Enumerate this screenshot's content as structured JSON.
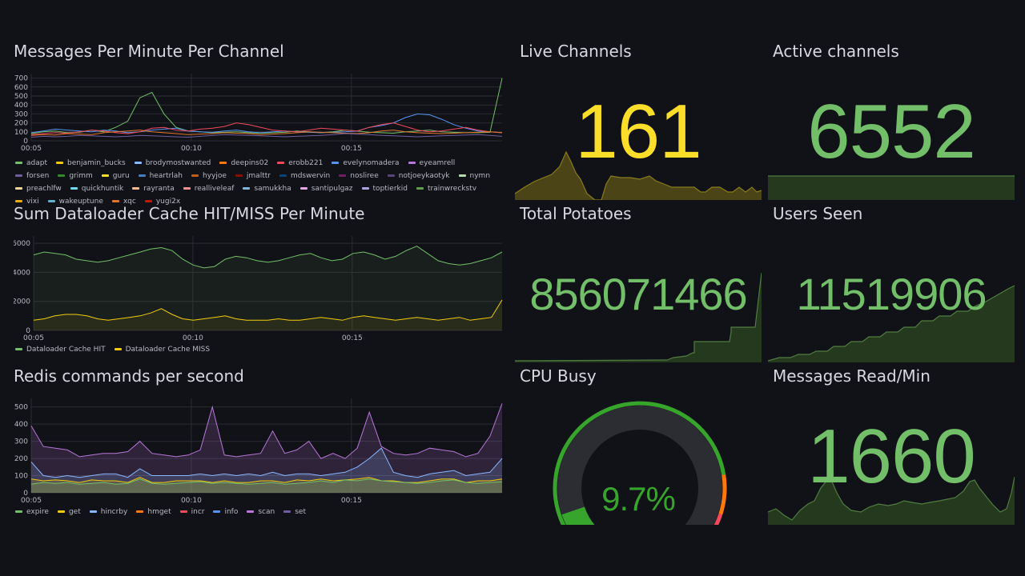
{
  "panels": {
    "messages_per_channel": {
      "title": "Messages Per Minute Per Channel",
      "legend": [
        {
          "name": "adapt",
          "color": "#73bf69"
        },
        {
          "name": "benjamin_bucks",
          "color": "#f2cc0c"
        },
        {
          "name": "brodymostwanted",
          "color": "#8ab8ff"
        },
        {
          "name": "deepins02",
          "color": "#ff780a"
        },
        {
          "name": "erobb221",
          "color": "#f2495c"
        },
        {
          "name": "evelynomadera",
          "color": "#5794f2"
        },
        {
          "name": "eyeamrell",
          "color": "#b877d9"
        },
        {
          "name": "forsen",
          "color": "#705da0"
        },
        {
          "name": "grimm",
          "color": "#37872d"
        },
        {
          "name": "guru",
          "color": "#fade2a"
        },
        {
          "name": "heartrlah",
          "color": "#447ebc"
        },
        {
          "name": "hyyjoe",
          "color": "#c15c17"
        },
        {
          "name": "jmalttr",
          "color": "#890f02"
        },
        {
          "name": "mdswervin",
          "color": "#0a437c"
        },
        {
          "name": "nosliree",
          "color": "#6d1f62"
        },
        {
          "name": "notjoeykaotyk",
          "color": "#584477"
        },
        {
          "name": "nymn",
          "color": "#b7dbab"
        },
        {
          "name": "preachlfw",
          "color": "#f4d598"
        },
        {
          "name": "quickhuntik",
          "color": "#70dbed"
        },
        {
          "name": "rayranta",
          "color": "#f9ba8f"
        },
        {
          "name": "realliveleaf",
          "color": "#f29191"
        },
        {
          "name": "samukkha",
          "color": "#82b5d8"
        },
        {
          "name": "santipulgaz",
          "color": "#e5a8e2"
        },
        {
          "name": "toptierkid",
          "color": "#aea2e0"
        },
        {
          "name": "trainwreckstv",
          "color": "#629e51"
        },
        {
          "name": "vixi",
          "color": "#e5ac0e"
        },
        {
          "name": "wakeuptune",
          "color": "#64b0c8"
        },
        {
          "name": "xqc",
          "color": "#e0752d"
        },
        {
          "name": "yugi2x",
          "color": "#bf1b00"
        }
      ]
    },
    "dataloader_cache": {
      "title": "Sum Dataloader Cache HIT/MISS Per Minute",
      "legend": [
        {
          "name": "Dataloader Cache HIT",
          "color": "#73bf69"
        },
        {
          "name": "Dataloader Cache MISS",
          "color": "#f2cc0c"
        }
      ]
    },
    "redis_commands": {
      "title": "Redis commands per second",
      "legend": [
        {
          "name": "expire",
          "color": "#73bf69"
        },
        {
          "name": "get",
          "color": "#f2cc0c"
        },
        {
          "name": "hincrby",
          "color": "#8ab8ff"
        },
        {
          "name": "hmget",
          "color": "#ff780a"
        },
        {
          "name": "incr",
          "color": "#f2495c"
        },
        {
          "name": "info",
          "color": "#5794f2"
        },
        {
          "name": "scan",
          "color": "#b877d9"
        },
        {
          "name": "set",
          "color": "#705da0"
        }
      ]
    },
    "live_channels": {
      "title": "Live Channels",
      "value": "161",
      "color": "#fade2a"
    },
    "active_channels": {
      "title": "Active channels",
      "value": "6552",
      "color": "#73bf69"
    },
    "total_potatoes": {
      "title": "Total Potatoes",
      "value": "856071466",
      "color": "#73bf69"
    },
    "users_seen": {
      "title": "Users Seen",
      "value": "11519906",
      "color": "#73bf69"
    },
    "cpu_busy": {
      "title": "CPU Busy",
      "value": "9.7%",
      "percent": 9.7,
      "color": "#37a42c"
    },
    "messages_read": {
      "title": "Messages Read/Min",
      "value": "1660",
      "color": "#73bf69"
    }
  },
  "chart_data": [
    {
      "type": "line",
      "title": "Messages Per Minute Per Channel",
      "x_ticks": [
        "00:05",
        "00:10",
        "00:15"
      ],
      "y_ticks": [
        0,
        100,
        200,
        300,
        400,
        500,
        600,
        700
      ],
      "ylim": [
        0,
        750
      ],
      "series": [
        {
          "name": "adapt",
          "values": [
            80,
            100,
            110,
            90,
            95,
            120,
            100,
            150,
            220,
            480,
            540,
            300,
            150,
            110,
            100,
            90,
            95,
            100,
            90,
            85,
            90,
            95,
            110,
            100,
            90,
            100,
            120,
            110,
            95,
            90,
            85,
            100,
            110,
            120,
            100,
            95,
            90,
            90,
            95,
            700
          ]
        },
        {
          "name": "evelynomadera",
          "values": [
            90,
            110,
            130,
            120,
            110,
            100,
            120,
            110,
            90,
            100,
            120,
            130,
            140,
            110,
            100,
            95,
            110,
            120,
            100,
            90,
            100,
            110,
            100,
            95,
            90,
            95,
            100,
            110,
            150,
            170,
            200,
            260,
            300,
            290,
            240,
            180,
            140,
            110,
            100,
            90
          ]
        },
        {
          "name": "erobb221",
          "values": [
            70,
            80,
            90,
            85,
            100,
            120,
            110,
            90,
            80,
            100,
            140,
            150,
            120,
            110,
            130,
            140,
            160,
            200,
            180,
            150,
            120,
            110,
            100,
            120,
            140,
            130,
            120,
            110,
            150,
            180,
            200,
            160,
            120,
            100,
            110,
            130,
            150,
            120,
            100,
            90
          ]
        },
        {
          "name": "xqc",
          "values": [
            60,
            70,
            65,
            80,
            75,
            70,
            90,
            100,
            110,
            120,
            100,
            90,
            80,
            70,
            75,
            80,
            90,
            85,
            80,
            70,
            75,
            80,
            90,
            100,
            95,
            90,
            85,
            80,
            90,
            110,
            120,
            100,
            90,
            85,
            80,
            85,
            90,
            95,
            100,
            90
          ]
        },
        {
          "name": "forsen",
          "values": [
            40,
            50,
            45,
            50,
            60,
            55,
            50,
            45,
            50,
            60,
            55,
            50,
            45,
            40,
            50,
            60,
            70,
            65,
            60,
            55,
            50,
            45,
            50,
            55,
            60,
            70,
            80,
            75,
            70,
            60,
            55,
            50,
            45,
            50,
            55,
            60,
            65,
            70,
            60,
            50
          ]
        }
      ]
    },
    {
      "type": "line",
      "title": "Sum Dataloader Cache HIT/MISS Per Minute",
      "x_ticks": [
        "00:05",
        "00:10",
        "00:15"
      ],
      "y_ticks": [
        0,
        2000,
        4000,
        6000
      ],
      "ylim": [
        0,
        6500
      ],
      "series": [
        {
          "name": "Dataloader Cache HIT",
          "values": [
            5200,
            5400,
            5300,
            5200,
            4900,
            4800,
            4700,
            4800,
            5000,
            5200,
            5400,
            5600,
            5700,
            5500,
            4900,
            4500,
            4300,
            4400,
            4900,
            5100,
            5000,
            4800,
            4700,
            4800,
            5000,
            5200,
            5300,
            5000,
            4800,
            4900,
            5300,
            5400,
            5200,
            4900,
            5100,
            5500,
            5800,
            5300,
            4800,
            4600,
            4500,
            4600,
            4800,
            5000,
            5400
          ]
        },
        {
          "name": "Dataloader Cache MISS",
          "values": [
            700,
            800,
            1000,
            1100,
            1100,
            1000,
            800,
            700,
            800,
            900,
            1000,
            1200,
            1500,
            1100,
            800,
            700,
            800,
            900,
            1000,
            800,
            700,
            700,
            700,
            800,
            700,
            700,
            800,
            900,
            800,
            700,
            900,
            1000,
            900,
            800,
            700,
            800,
            900,
            800,
            700,
            800,
            900,
            700,
            800,
            900,
            2100
          ]
        }
      ]
    },
    {
      "type": "area",
      "title": "Redis commands per second",
      "x_ticks": [
        "00:05",
        "00:10",
        "00:15"
      ],
      "y_ticks": [
        0,
        100,
        200,
        300,
        400,
        500
      ],
      "ylim": [
        0,
        550
      ],
      "series": [
        {
          "name": "expire",
          "values": [
            50,
            60,
            55,
            60,
            50,
            55,
            60,
            50,
            55,
            80,
            55,
            50,
            55,
            60,
            65,
            55,
            60,
            55,
            50,
            55,
            60,
            50,
            55,
            60,
            70,
            60,
            75,
            70,
            80,
            70,
            65,
            60,
            55,
            60,
            70,
            75,
            60,
            55,
            60,
            65
          ]
        },
        {
          "name": "get",
          "values": [
            80,
            70,
            75,
            70,
            60,
            75,
            70,
            70,
            60,
            90,
            60,
            60,
            70,
            70,
            70,
            60,
            70,
            60,
            60,
            70,
            70,
            60,
            75,
            70,
            80,
            70,
            70,
            80,
            90,
            70,
            70,
            60,
            60,
            70,
            80,
            80,
            60,
            70,
            70,
            80
          ]
        },
        {
          "name": "hincrby",
          "values": [
            180,
            100,
            90,
            100,
            90,
            100,
            110,
            110,
            90,
            140,
            100,
            100,
            100,
            100,
            110,
            100,
            110,
            100,
            110,
            100,
            120,
            100,
            110,
            110,
            100,
            110,
            120,
            150,
            200,
            260,
            120,
            100,
            90,
            110,
            120,
            130,
            100,
            110,
            120,
            200
          ]
        },
        {
          "name": "scan",
          "values": [
            390,
            270,
            260,
            250,
            210,
            220,
            230,
            230,
            240,
            300,
            230,
            220,
            210,
            220,
            250,
            500,
            220,
            210,
            220,
            230,
            360,
            230,
            250,
            300,
            200,
            230,
            200,
            260,
            470,
            270,
            230,
            220,
            230,
            260,
            250,
            240,
            210,
            230,
            330,
            520
          ]
        }
      ]
    }
  ]
}
